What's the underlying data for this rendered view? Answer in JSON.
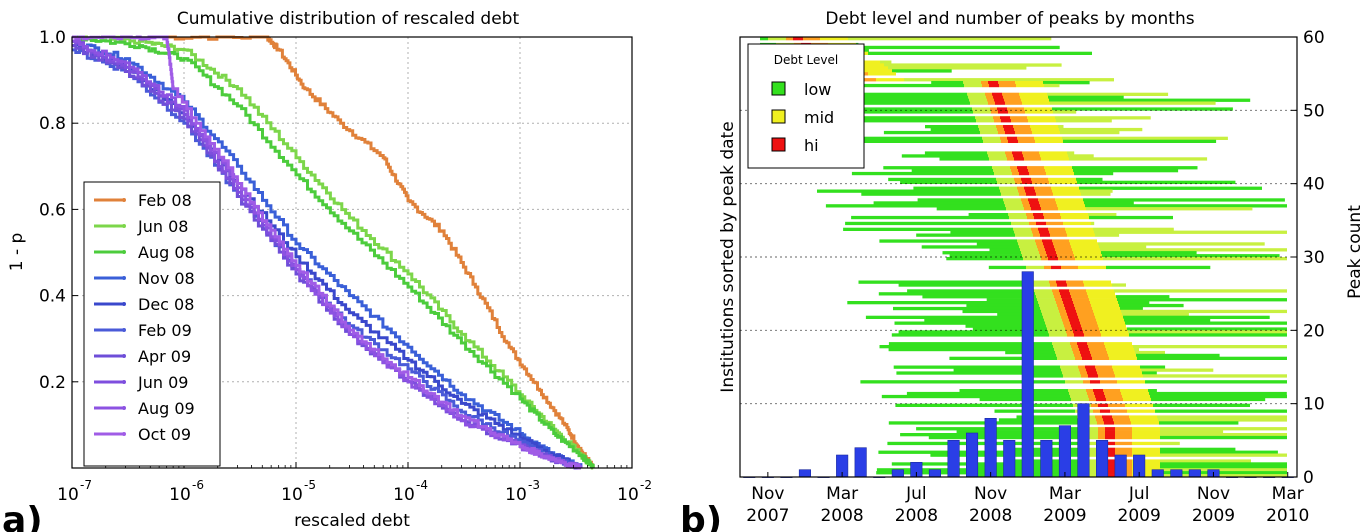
{
  "panel_labels": [
    "a)",
    "b)"
  ],
  "chart_data": [
    {
      "type": "line",
      "title": "Cumulative distribution of rescaled debt",
      "xlabel": "rescaled debt",
      "ylabel": "1 - p",
      "xscale": "log",
      "xlim_exp": [
        -7,
        -2
      ],
      "ylim": [
        0.0,
        1.0
      ],
      "x_ticks": [
        {
          "base": "10",
          "exp": "-7"
        },
        {
          "base": "10",
          "exp": "-6"
        },
        {
          "base": "10",
          "exp": "-5"
        },
        {
          "base": "10",
          "exp": "-4"
        },
        {
          "base": "10",
          "exp": "-3"
        },
        {
          "base": "10",
          "exp": "-2"
        }
      ],
      "y_ticks": [
        "1.0",
        "0.8",
        "0.6",
        "0.4",
        "0.2"
      ],
      "grid": true,
      "legend_position": "left-middle",
      "series": [
        {
          "name": "Feb 08",
          "color": "#e0813a",
          "x": [
            5e-07,
            5.5e-06,
            7e-06,
            1.2e-05,
            2.5e-05,
            6e-05,
            0.0001,
            0.0002,
            0.0004,
            0.0008,
            0.0015,
            0.0025,
            0.0035,
            0.0045
          ],
          "y": [
            1.0,
            1.0,
            0.97,
            0.88,
            0.8,
            0.72,
            0.62,
            0.55,
            0.42,
            0.28,
            0.18,
            0.1,
            0.04,
            0.0
          ]
        },
        {
          "name": "Jun 08",
          "color": "#7cd64a",
          "x": [
            1e-07,
            4e-07,
            1e-06,
            3e-06,
            1e-05,
            3e-05,
            0.0001,
            0.0003,
            0.001,
            0.002,
            0.0035,
            0.0045
          ],
          "y": [
            1.0,
            0.99,
            0.97,
            0.88,
            0.72,
            0.58,
            0.45,
            0.31,
            0.17,
            0.09,
            0.03,
            0.0
          ]
        },
        {
          "name": "Aug 08",
          "color": "#4ccc3c",
          "x": [
            1e-07,
            4e-07,
            1e-06,
            3e-06,
            1e-05,
            3e-05,
            0.0001,
            0.0003,
            0.001,
            0.002,
            0.0035,
            0.0045
          ],
          "y": [
            1.0,
            0.98,
            0.95,
            0.84,
            0.68,
            0.55,
            0.42,
            0.29,
            0.16,
            0.08,
            0.03,
            0.0
          ]
        },
        {
          "name": "Nov 08",
          "color": "#3a5fd8",
          "x": [
            1e-07,
            3e-07,
            1e-06,
            3e-06,
            1e-05,
            3e-05,
            0.0001,
            0.0003,
            0.001,
            0.002,
            0.0035
          ],
          "y": [
            0.99,
            0.95,
            0.85,
            0.7,
            0.52,
            0.4,
            0.28,
            0.17,
            0.08,
            0.03,
            0.0
          ]
        },
        {
          "name": "Dec 08",
          "color": "#3a48cc",
          "x": [
            1e-07,
            3e-07,
            1e-06,
            3e-06,
            1e-05,
            3e-05,
            0.0001,
            0.0003,
            0.001,
            0.002,
            0.0035
          ],
          "y": [
            0.98,
            0.93,
            0.82,
            0.66,
            0.49,
            0.36,
            0.25,
            0.15,
            0.07,
            0.03,
            0.0
          ]
        },
        {
          "name": "Feb 09",
          "color": "#4a5ad8",
          "x": [
            1e-07,
            3e-07,
            1e-06,
            3e-06,
            1e-05,
            3e-05,
            0.0001,
            0.0003,
            0.001,
            0.002,
            0.0035
          ],
          "y": [
            0.97,
            0.92,
            0.8,
            0.63,
            0.46,
            0.33,
            0.23,
            0.13,
            0.06,
            0.02,
            0.0
          ]
        },
        {
          "name": "Apr 09",
          "color": "#6e4ed8",
          "x": [
            1e-07,
            3e-07,
            1e-06,
            3e-06,
            1e-05,
            3e-05,
            0.0001,
            0.0003,
            0.001,
            0.002,
            0.0035
          ],
          "y": [
            0.98,
            0.92,
            0.81,
            0.63,
            0.45,
            0.31,
            0.2,
            0.11,
            0.05,
            0.02,
            0.0
          ]
        },
        {
          "name": "Jun 09",
          "color": "#7e4ede",
          "x": [
            1e-07,
            3e-07,
            1e-06,
            3e-06,
            1e-05,
            3e-05,
            0.0001,
            0.0003,
            0.001,
            0.002,
            0.0035
          ],
          "y": [
            0.99,
            0.93,
            0.82,
            0.64,
            0.46,
            0.31,
            0.2,
            0.11,
            0.05,
            0.02,
            0.0
          ]
        },
        {
          "name": "Aug 09",
          "color": "#8c52e2",
          "x": [
            1e-07,
            3e-07,
            1e-06,
            3e-06,
            1e-05,
            3e-05,
            0.0001,
            0.0003,
            0.001,
            0.002,
            0.0035
          ],
          "y": [
            0.99,
            0.94,
            0.83,
            0.65,
            0.46,
            0.31,
            0.2,
            0.11,
            0.05,
            0.02,
            0.0
          ]
        },
        {
          "name": "Oct 09",
          "color": "#a05ce6",
          "x": [
            1e-07,
            3e-07,
            7e-07,
            8e-07,
            3e-06,
            1e-05,
            3e-05,
            0.0001,
            0.0003,
            0.001,
            0.002,
            0.0035
          ],
          "y": [
            1.0,
            1.0,
            1.0,
            0.88,
            0.66,
            0.47,
            0.32,
            0.21,
            0.12,
            0.05,
            0.02,
            0.0
          ]
        }
      ]
    },
    {
      "type": "heatmap",
      "title": "Debt level and number of peaks by months",
      "ylabel": "Institutions sorted by peak date",
      "y2label": "Peak count",
      "ylim": [
        0,
        60
      ],
      "y2_ticks": [
        "0",
        "10",
        "20",
        "30",
        "40",
        "50",
        "60"
      ],
      "x_ticks": [
        {
          "month": "Nov",
          "year": "2007"
        },
        {
          "month": "Mar",
          "year": "2008"
        },
        {
          "month": "Jul",
          "year": "2008"
        },
        {
          "month": "Nov",
          "year": "2008"
        },
        {
          "month": "Mar",
          "year": "2009"
        },
        {
          "month": "Jul",
          "year": "2009"
        },
        {
          "month": "Nov",
          "year": "2009"
        },
        {
          "month": "Mar",
          "year": "2010"
        }
      ],
      "month_labels": [
        "Oct 2007",
        "Nov 2007",
        "Dec 2007",
        "Jan 2008",
        "Feb 2008",
        "Mar 2008",
        "Apr 2008",
        "May 2008",
        "Jun 2008",
        "Jul 2008",
        "Aug 2008",
        "Sep 2008",
        "Oct 2008",
        "Nov 2008",
        "Dec 2008",
        "Jan 2009",
        "Feb 2009",
        "Mar 2009",
        "Apr 2009",
        "May 2009",
        "Jun 2009",
        "Jul 2009",
        "Aug 2009",
        "Sep 2009",
        "Oct 2009",
        "Nov 2009",
        "Dec 2009",
        "Jan 2010",
        "Feb 2010",
        "Mar 2010"
      ],
      "peak_counts": [
        0,
        0,
        0,
        1,
        0,
        3,
        4,
        0,
        1,
        2,
        1,
        5,
        6,
        8,
        5,
        28,
        5,
        7,
        10,
        5,
        3,
        3,
        1,
        1,
        1,
        1,
        0,
        0,
        0,
        0
      ],
      "legend": {
        "title": "Debt Level",
        "position": "top-left",
        "entries": [
          {
            "label": "low",
            "color": "#33e01e"
          },
          {
            "label": "mid",
            "color": "#f0f020"
          },
          {
            "label": "hi",
            "color": "#ee1111"
          }
        ]
      },
      "colors": {
        "low": "#33e01e",
        "lowmid": "#c8f040",
        "mid": "#f0f020",
        "midhi": "#ffa020",
        "hi": "#ee1111",
        "bar": "#2a3ee6"
      }
    }
  ]
}
